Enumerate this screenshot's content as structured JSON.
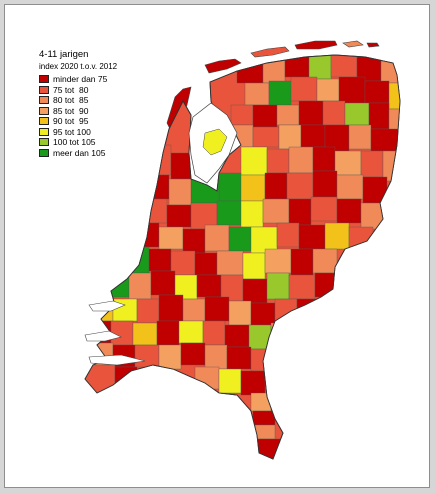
{
  "legend": {
    "title": "4-11 jarigen",
    "subtitle": "index 2020 t.o.v. 2012",
    "classes": [
      {
        "label": "minder dan 75",
        "color": "#c00000"
      },
      {
        "label": "75 tot  80",
        "color": "#e8543c"
      },
      {
        "label": "80 tot  85",
        "color": "#f08a58"
      },
      {
        "label": "85 tot  90",
        "color": "#f4a060"
      },
      {
        "label": "90 tot  95",
        "color": "#f2c21a"
      },
      {
        "label": "95 tot 100",
        "color": "#f0f020"
      },
      {
        "label": "100 tot 105",
        "color": "#99c82c"
      },
      {
        "label": "meer dan 105",
        "color": "#1a9a1a"
      }
    ]
  },
  "palette": {
    "border": "#444444",
    "water": "#ffffff"
  }
}
